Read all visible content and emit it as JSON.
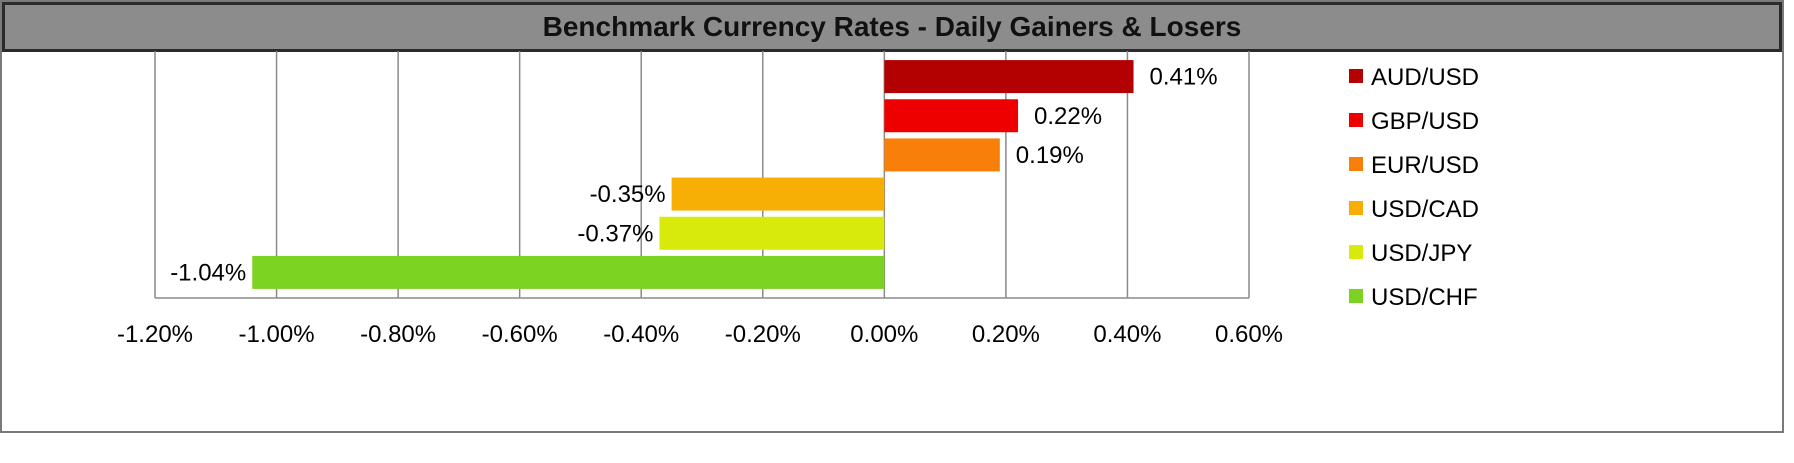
{
  "chart_data": {
    "type": "bar",
    "orientation": "horizontal",
    "title": "Benchmark Currency Rates - Daily Gainers & Losers",
    "categories": [
      "AUD/USD",
      "GBP/USD",
      "EUR/USD",
      "USD/CAD",
      "USD/JPY",
      "USD/CHF"
    ],
    "values": [
      0.41,
      0.22,
      0.19,
      -0.35,
      -0.37,
      -1.04
    ],
    "value_labels": [
      "0.41%",
      "0.22%",
      "0.19%",
      "-0.35%",
      "-0.37%",
      "-1.04%"
    ],
    "colors": [
      "#b30000",
      "#ee0000",
      "#f77f0a",
      "#f7ae05",
      "#d7ea0c",
      "#7dd322"
    ],
    "xlim": [
      -1.2,
      0.6
    ],
    "x_ticks": [
      -1.2,
      -1.0,
      -0.8,
      -0.6,
      -0.4,
      -0.2,
      0.0,
      0.2,
      0.4,
      0.6
    ],
    "x_tick_labels": [
      "-1.20%",
      "-1.00%",
      "-0.80%",
      "-0.60%",
      "-0.40%",
      "-0.20%",
      "0.00%",
      "0.20%",
      "0.40%",
      "0.60%"
    ],
    "grid": true,
    "legend_position": "right"
  }
}
